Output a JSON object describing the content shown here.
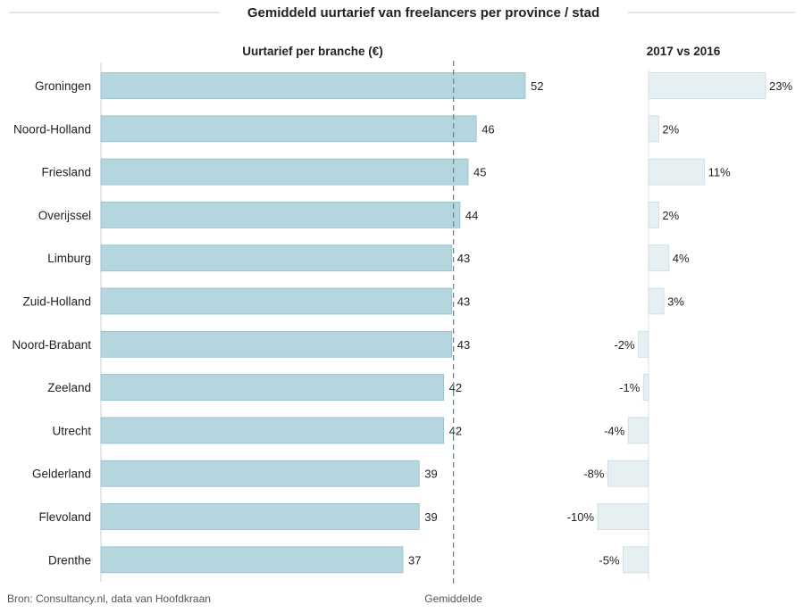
{
  "chart_data": {
    "type": "bar",
    "orientation": "horizontal",
    "title": "Gemiddeld uurtarief van freelancers per province / stad",
    "categories": [
      "Groningen",
      "Noord-Holland",
      "Friesland",
      "Overijssel",
      "Limburg",
      "Zuid-Holland",
      "Noord-Brabant",
      "Zeeland",
      "Utrecht",
      "Gelderland",
      "Flevoland",
      "Drenthe"
    ],
    "panels": [
      {
        "title": "Uurtarief per branche (€)",
        "values": [
          52,
          46,
          45,
          44,
          43,
          43,
          43,
          42,
          42,
          39,
          39,
          37
        ],
        "labels": [
          "52",
          "46",
          "45",
          "44",
          "43",
          "43",
          "43",
          "42",
          "42",
          "39",
          "39",
          "37"
        ],
        "xlim": [
          0,
          52
        ],
        "bar_color": "#b5d6de",
        "bar_border": "#8fbfcb",
        "reference_line": {
          "label": "Gemiddelde",
          "value": 43.2,
          "color": "#5a8fa8",
          "style": "dashed"
        }
      },
      {
        "title": "2017 vs 2016",
        "values": [
          23,
          2,
          11,
          2,
          4,
          3,
          -2,
          -1,
          -4,
          -8,
          -10,
          -5
        ],
        "labels": [
          "23%",
          "2%",
          "11%",
          "2%",
          "4%",
          "3%",
          "-2%",
          "-1%",
          "-4%",
          "-8%",
          "-10%",
          "-5%"
        ],
        "xlim": [
          -10,
          23
        ],
        "unit": "%",
        "bar_color": "#e6f0f2",
        "bar_border": "#c8dce1"
      }
    ],
    "source": "Bron: Consultancy.nl, data van Hoofdkraan"
  }
}
